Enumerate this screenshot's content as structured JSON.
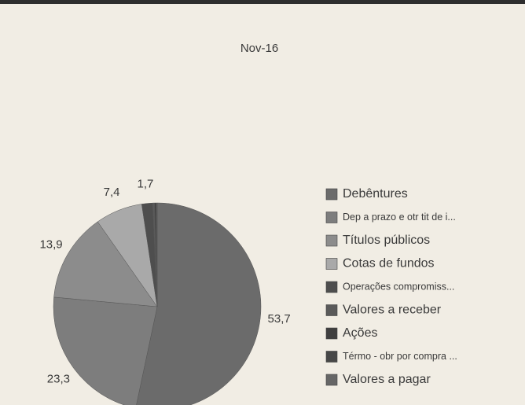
{
  "chart_data": {
    "type": "pie",
    "title": "Nov-16",
    "categories": [
      "Debêntures",
      "Dep a prazo e otr tit de i...",
      "Títulos públicos",
      "Cotas de fundos",
      "Operações compromiss...",
      "Valores a receber",
      "Ações",
      "Térmo - obr por compra ...",
      "Valores a pagar"
    ],
    "values": [
      53.7,
      23.3,
      13.9,
      7.4,
      1.7,
      0.3,
      0.2,
      0.1,
      0.1
    ],
    "value_labels": [
      "53,7",
      "23,3",
      "13,9",
      "7,4",
      "1,7",
      null,
      null,
      null,
      null
    ],
    "colors": [
      "#6b6b6b",
      "#7d7d7d",
      "#8c8c8c",
      "#a9a9a9",
      "#4e4e4e",
      "#5a5a5a",
      "#3f3f3f",
      "#474747",
      "#666666"
    ],
    "legend": "right"
  }
}
